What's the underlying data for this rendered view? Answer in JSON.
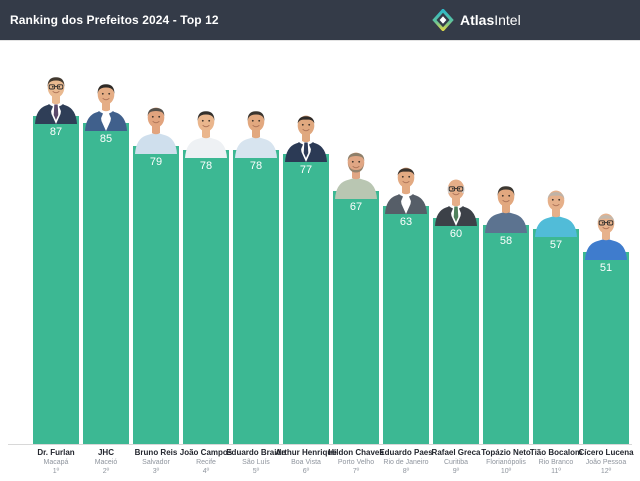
{
  "header": {
    "title": "Ranking dos Prefeitos 2024 - Top 12",
    "brand": {
      "name_bold": "Atlas",
      "name_regular": "Intel",
      "logo_icon": "atlasintel-diamond-icon",
      "logo_colors": {
        "top": "#2fb9c7",
        "middle": "#5cc2a0",
        "bottom": "#d6d44b",
        "center": "#ffffff"
      }
    },
    "bg_color": "#343b48",
    "text_color": "#ffffff"
  },
  "chart_data": {
    "type": "bar",
    "title": "Ranking dos Prefeitos 2024 - Top 12",
    "xlabel": "",
    "ylabel": "",
    "ylim": [
      0,
      100
    ],
    "grid": false,
    "legend": null,
    "bar_color": "#3cb893",
    "value_label_color": "#ffffff",
    "baseline_color": "#d8d8d8",
    "categories": [
      "Dr. Furlan",
      "JHC",
      "Bruno Reis",
      "João Campos",
      "Eduardo Braide",
      "Arthur Henrique",
      "Hildon Chaves",
      "Eduardo Paes",
      "Rafael Greca",
      "Topázio Neto",
      "Tião Bocalom",
      "Cícero Lucena"
    ],
    "values": [
      87,
      85,
      79,
      78,
      78,
      77,
      67,
      63,
      60,
      58,
      57,
      51
    ],
    "bars": [
      {
        "name": "Dr. Furlan",
        "city": "Macapá",
        "rank": "1º",
        "value": 87,
        "avatar": {
          "skin": "#e9b990",
          "hair": "#42392f",
          "hairStyle": "full",
          "jacket": "#2f3e57",
          "shirt": "#ffffff",
          "tie": "#5b4a6b",
          "glasses": true,
          "beard": false
        }
      },
      {
        "name": "JHC",
        "city": "Maceió",
        "rank": "2º",
        "value": 85,
        "avatar": {
          "skin": "#e5ad85",
          "hair": "#2e2a26",
          "hairStyle": "full",
          "jacket": "#40608c",
          "shirt": "#ffffff",
          "tie": null,
          "glasses": false,
          "beard": false
        }
      },
      {
        "name": "Bruno Reis",
        "city": "Salvador",
        "rank": "3º",
        "value": 79,
        "avatar": {
          "skin": "#e2a47e",
          "hair": "#55504a",
          "hairStyle": "short",
          "jacket": null,
          "shirt": "#cfdfed",
          "tie": null,
          "glasses": false,
          "beard": false
        }
      },
      {
        "name": "João Campos",
        "city": "Recife",
        "rank": "4º",
        "value": 78,
        "avatar": {
          "skin": "#eab68d",
          "hair": "#33302c",
          "hairStyle": "full",
          "jacket": null,
          "shirt": "#eef1f4",
          "tie": null,
          "glasses": false,
          "beard": false
        }
      },
      {
        "name": "Eduardo Braide",
        "city": "São Luís",
        "rank": "5º",
        "value": 78,
        "avatar": {
          "skin": "#e2a87f",
          "hair": "#3a352f",
          "hairStyle": "full",
          "jacket": null,
          "shirt": "#d7e4ef",
          "tie": null,
          "glasses": false,
          "beard": false
        }
      },
      {
        "name": "Arthur Henrique",
        "city": "Boa Vista",
        "rank": "6º",
        "value": 77,
        "avatar": {
          "skin": "#e0a87f",
          "hair": "#2f2b28",
          "hairStyle": "receding",
          "jacket": "#2b3a55",
          "shirt": "#ffffff",
          "tie": "#2f3c58",
          "glasses": false,
          "beard": false
        }
      },
      {
        "name": "Hildon Chaves",
        "city": "Porto Velho",
        "rank": "7º",
        "value": 67,
        "avatar": {
          "skin": "#e0a684",
          "hair": "#8d7f6a",
          "hairStyle": "short",
          "jacket": null,
          "shirt": "#b9c6b2",
          "tie": null,
          "glasses": false,
          "beard": true
        }
      },
      {
        "name": "Eduardo Paes",
        "city": "Rio de Janeiro",
        "rank": "8º",
        "value": 63,
        "avatar": {
          "skin": "#e3aa82",
          "hair": "#3a332d",
          "hairStyle": "receding",
          "jacket": "#565e68",
          "shirt": "#ffffff",
          "tie": null,
          "glasses": false,
          "beard": false
        }
      },
      {
        "name": "Rafael Greca",
        "city": "Curitiba",
        "rank": "9º",
        "value": 60,
        "avatar": {
          "skin": "#e6ae88",
          "hair": "#cfcfcf",
          "hairStyle": "bald",
          "jacket": "#3c4148",
          "shirt": "#ffffff",
          "tie": "#50815c",
          "glasses": true,
          "beard": false
        }
      },
      {
        "name": "Topázio Neto",
        "city": "Florianópolis",
        "rank": "10º",
        "value": 58,
        "avatar": {
          "skin": "#e2a87f",
          "hair": "#3c3832",
          "hairStyle": "full",
          "jacket": null,
          "shirt": "#5c7390",
          "tie": null,
          "glasses": false,
          "beard": false
        }
      },
      {
        "name": "Tião Bocalom",
        "city": "Rio Branco",
        "rank": "11º",
        "value": 57,
        "avatar": {
          "skin": "#e6b08a",
          "hair": "#b9b4ac",
          "hairStyle": "balding",
          "jacket": null,
          "shirt": "#51bcd8",
          "tie": null,
          "glasses": false,
          "beard": false
        }
      },
      {
        "name": "Cícero Lucena",
        "city": "João Pessoa",
        "rank": "12º",
        "value": 51,
        "avatar": {
          "skin": "#e7b28c",
          "hair": "#bdb8b0",
          "hairStyle": "balding",
          "jacket": null,
          "shirt": "#3f7ccd",
          "tie": null,
          "glasses": true,
          "beard": false
        }
      }
    ]
  }
}
